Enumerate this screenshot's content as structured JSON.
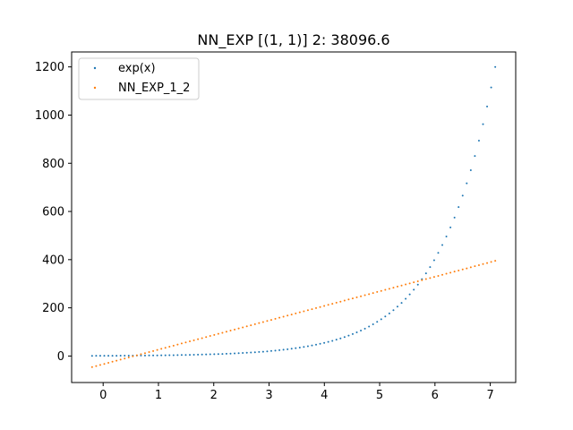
{
  "chart_data": {
    "type": "scatter",
    "title": "NN_EXP [(1, 1)] 2: 38096.6",
    "xlabel": "",
    "ylabel": "",
    "xlim": [
      -0.57,
      7.46
    ],
    "ylim": [
      -110,
      1262
    ],
    "x_ticks": [
      0,
      1,
      2,
      3,
      4,
      5,
      6,
      7
    ],
    "x_tick_labels": [
      "0",
      "1",
      "2",
      "3",
      "4",
      "5",
      "6",
      "7"
    ],
    "y_ticks": [
      0,
      200,
      400,
      600,
      800,
      1000,
      1200
    ],
    "y_tick_labels": [
      "0",
      "200",
      "400",
      "600",
      "800",
      "1000",
      "1200"
    ],
    "grid": false,
    "legend_position": "top-left",
    "x_range": [
      -0.2,
      7.09
    ],
    "n_points": 100,
    "series": [
      {
        "name": "exp(x)",
        "color": "#1f77b4",
        "function": "exp",
        "x_start": -0.2,
        "x_end": 7.09,
        "y_start": 0.82,
        "y_end": 1199
      },
      {
        "name": "NN_EXP_1_2",
        "color": "#ff7f0e",
        "function": "linear",
        "x_start": -0.2,
        "x_end": 7.09,
        "y_start": -46,
        "y_end": 395
      }
    ]
  }
}
